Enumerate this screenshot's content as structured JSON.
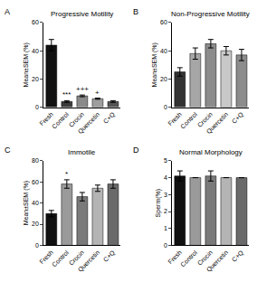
{
  "chart_data": [
    {
      "type": "bar",
      "title": "Progressive Motility",
      "ylabel": "Mean±SEM (%)",
      "categories": [
        "Fresh",
        "Control",
        "Crocin",
        "Quercetin",
        "C+Q"
      ],
      "values": [
        44,
        4,
        8,
        6,
        4
      ],
      "errors": [
        4,
        0.6,
        0.6,
        0.4,
        0.6
      ],
      "colors": [
        "#111111",
        "#3c3c3c",
        "#8a8a8a",
        "#9e9e9e",
        "#555555"
      ],
      "ylim": [
        0,
        60
      ],
      "yticks": [
        0,
        20,
        40,
        60
      ],
      "annotations": [
        {
          "text": "A"
        },
        {
          "text": "***",
          "category": "Control"
        },
        {
          "text": "+++",
          "category": "Crocin"
        },
        {
          "text": "+",
          "category": "Quercetin"
        }
      ]
    },
    {
      "type": "bar",
      "title": "Non-Progressive Motility",
      "ylabel": "Mean±SEM (%)",
      "categories": [
        "Fresh",
        "Control",
        "Crocin",
        "Quercetin",
        "C+Q"
      ],
      "values": [
        25,
        38,
        45,
        40,
        37
      ],
      "errors": [
        3,
        4,
        3,
        3,
        4
      ],
      "colors": [
        "#333333",
        "#a6a6a6",
        "#8c8c8c",
        "#c8c8c8",
        "#8c8c8c"
      ],
      "ylim": [
        0,
        60
      ],
      "yticks": [
        0,
        20,
        40,
        60
      ],
      "annotations": [
        {
          "text": "B"
        }
      ]
    },
    {
      "type": "bar",
      "title": "Immotile",
      "ylabel": "Mean±SEM (%)",
      "categories": [
        "Fresh",
        "Control",
        "Crocin",
        "Quercetin",
        "C+Q"
      ],
      "values": [
        30,
        58,
        46,
        54,
        58
      ],
      "errors": [
        3,
        4,
        4,
        3,
        4
      ],
      "colors": [
        "#111111",
        "#9a9a9a",
        "#7a7a7a",
        "#b4b4b4",
        "#6a6a6a"
      ],
      "ylim": [
        0,
        80
      ],
      "yticks": [
        0,
        20,
        40,
        60,
        80
      ],
      "annotations": [
        {
          "text": "C"
        },
        {
          "text": "*",
          "category": "Control"
        }
      ]
    },
    {
      "type": "bar",
      "title": "Normal Morphology",
      "ylabel": "Sperm(%)",
      "categories": [
        "Fresh",
        "Control",
        "Crocin",
        "Quercetin",
        "C+Q"
      ],
      "values": [
        4.1,
        4,
        4.1,
        4,
        4
      ],
      "errors": [
        0.3,
        0,
        0.3,
        0,
        0
      ],
      "colors": [
        "#111111",
        "#9a9a9a",
        "#7a7a7a",
        "#b4b4b4",
        "#6a6a6a"
      ],
      "ylim": [
        0,
        5
      ],
      "yticks": [
        0,
        1,
        2,
        3,
        4,
        5
      ],
      "annotations": [
        {
          "text": "D"
        }
      ]
    }
  ]
}
